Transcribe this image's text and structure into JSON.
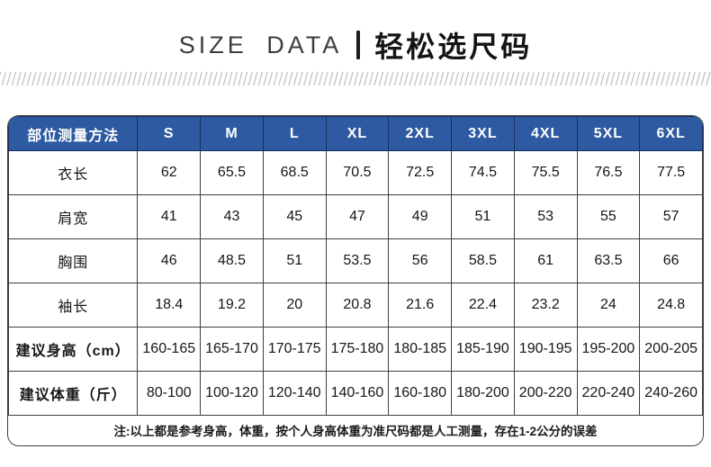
{
  "header": {
    "title_en": "SIZE DATA",
    "title_zh": "轻松选尺码"
  },
  "chart_data": {
    "type": "table",
    "columns": [
      "部位测量方法",
      "S",
      "M",
      "L",
      "XL",
      "2XL",
      "3XL",
      "4XL",
      "5XL",
      "6XL"
    ],
    "rows": [
      {
        "label": "衣长",
        "bold": false,
        "values": [
          "62",
          "65.5",
          "68.5",
          "70.5",
          "72.5",
          "74.5",
          "75.5",
          "76.5",
          "77.5"
        ]
      },
      {
        "label": "肩宽",
        "bold": false,
        "values": [
          "41",
          "43",
          "45",
          "47",
          "49",
          "51",
          "53",
          "55",
          "57"
        ]
      },
      {
        "label": "胸围",
        "bold": false,
        "values": [
          "46",
          "48.5",
          "51",
          "53.5",
          "56",
          "58.5",
          "61",
          "63.5",
          "66"
        ]
      },
      {
        "label": "袖长",
        "bold": false,
        "values": [
          "18.4",
          "19.2",
          "20",
          "20.8",
          "21.6",
          "22.4",
          "23.2",
          "24",
          "24.8"
        ]
      },
      {
        "label": "建议身高（cm）",
        "bold": true,
        "values": [
          "160-165",
          "165-170",
          "170-175",
          "175-180",
          "180-185",
          "185-190",
          "190-195",
          "195-200",
          "200-205"
        ]
      },
      {
        "label": "建议体重（斤）",
        "bold": true,
        "values": [
          "80-100",
          "100-120",
          "120-140",
          "140-160",
          "160-180",
          "180-200",
          "200-220",
          "220-240",
          "240-260"
        ]
      }
    ],
    "note": "注:以上都是参考身高，体重，按个人身高体重为准尺码都是人工测量，存在1-2公分的误差"
  },
  "colors": {
    "header_bg": "#2d5aa0",
    "header_border": "#17315f",
    "body_border": "#3f3f3f",
    "header_text": "#ffffff"
  }
}
